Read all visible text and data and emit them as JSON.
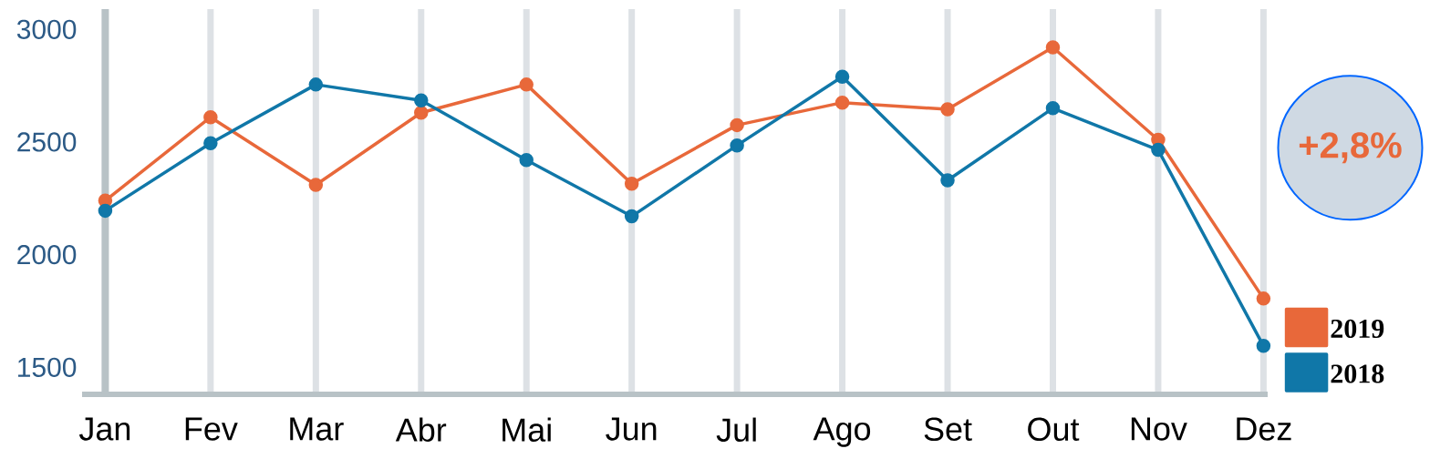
{
  "chart_data": {
    "type": "line",
    "categories": [
      "Jan",
      "Fev",
      "Mar",
      "Abr",
      "Mai",
      "Jun",
      "Jul",
      "Ago",
      "Set",
      "Out",
      "Nov",
      "Dez"
    ],
    "series": [
      {
        "name": "2019",
        "color": "#e8683a",
        "values": [
          2240,
          2610,
          2310,
          2630,
          2755,
          2315,
          2575,
          2675,
          2645,
          2920,
          2510,
          1805
        ]
      },
      {
        "name": "2018",
        "color": "#1077a8",
        "values": [
          2195,
          2495,
          2755,
          2685,
          2420,
          2170,
          2485,
          2790,
          2330,
          2650,
          2465,
          1595
        ]
      }
    ],
    "ylim": [
      1380,
      3090
    ],
    "yticks": [
      1500,
      2000,
      2500,
      3000
    ],
    "grid": "x",
    "legend": "bottom right",
    "marker": "circle",
    "line_style": "solid",
    "annotations": [
      "+2,8%"
    ]
  }
}
